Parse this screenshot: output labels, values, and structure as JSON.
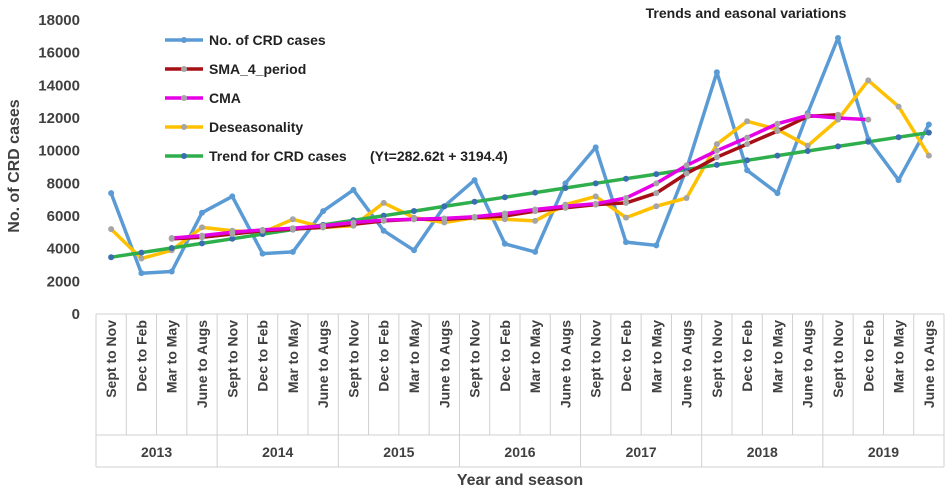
{
  "chart_data": {
    "type": "line",
    "title": "Trends and easonal variations",
    "xlabel": "Year and season",
    "ylabel": "No. of CRD cases",
    "ylim": [
      0,
      18000
    ],
    "yticks": [
      "0",
      "2000",
      "4000",
      "6000",
      "8000",
      "10000",
      "12000",
      "14000",
      "16000",
      "18000"
    ],
    "seasons": [
      "Sept to Nov",
      "Dec to Feb",
      "Mar to May",
      "June to Augs"
    ],
    "years": [
      "2013",
      "2014",
      "2015",
      "2016",
      "2017",
      "2018",
      "2019"
    ],
    "trend_equation": "(Yt=282.62t + 3194.4)",
    "series": [
      {
        "name": "No. of CRD cases",
        "color": "#5B9BD5",
        "marker": "#5B9BD5",
        "values": [
          7400,
          2500,
          2600,
          6200,
          7200,
          3700,
          3800,
          6300,
          7600,
          5100,
          3900,
          6600,
          8200,
          4300,
          3800,
          8000,
          10200,
          4400,
          4200,
          8900,
          14800,
          8800,
          7400,
          12300,
          16900,
          10700,
          8200,
          11600
        ]
      },
      {
        "name": "SMA_4_period",
        "color": "#A50F15",
        "marker": "#A5A5A5",
        "values": [
          null,
          null,
          4600,
          4700,
          4900,
          5100,
          5200,
          5300,
          5500,
          5700,
          5800,
          5800,
          5900,
          6000,
          6300,
          6500,
          6700,
          6800,
          7400,
          8600,
          9600,
          10400,
          11200,
          12100,
          12200,
          null,
          null,
          null
        ]
      },
      {
        "name": "CMA",
        "color": "#E600E6",
        "marker": "#A5A5A5",
        "values": [
          null,
          null,
          4650,
          4800,
          5000,
          5150,
          5250,
          5400,
          5600,
          5750,
          5800,
          5850,
          5950,
          6150,
          6400,
          6600,
          6750,
          7100,
          8000,
          9100,
          10000,
          10800,
          11650,
          12150,
          12000,
          11900,
          null,
          null
        ]
      },
      {
        "name": "Deseasonality",
        "color": "#FFC000",
        "marker": "#A5A5A5",
        "values": [
          5200,
          3400,
          3900,
          5300,
          5100,
          5000,
          5800,
          5300,
          5400,
          6800,
          5900,
          5600,
          5900,
          5800,
          5700,
          6700,
          7200,
          5900,
          6600,
          7100,
          10400,
          11800,
          11300,
          10300,
          11900,
          14300,
          12700,
          9700
        ]
      },
      {
        "name": "Trend for CRD cases",
        "color": "#2EAF4C",
        "marker": "#3A6FAF",
        "values": [
          3477,
          3760,
          4042,
          4325,
          4607,
          4890,
          5173,
          5455,
          5738,
          6021,
          6303,
          6586,
          6869,
          7151,
          7434,
          7716,
          7999,
          8282,
          8564,
          8847,
          9130,
          9412,
          9695,
          9977,
          10260,
          10543,
          10825,
          11108
        ]
      }
    ]
  }
}
